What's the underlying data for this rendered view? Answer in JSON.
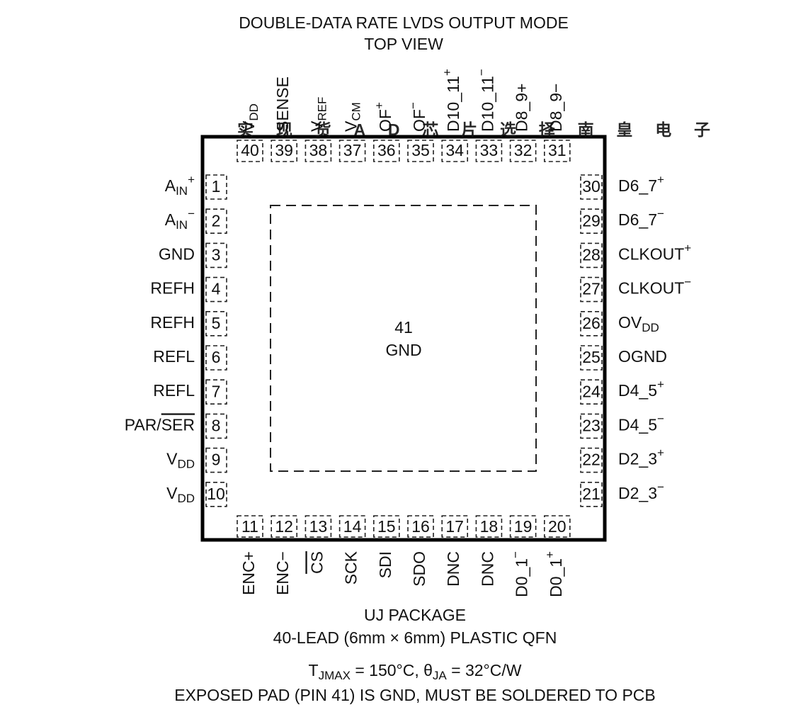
{
  "header": {
    "title": [
      "DOUBLE-DATA RATE LVDS OUTPUT MODE",
      "TOP VIEW"
    ]
  },
  "watermark": "实现货AD芯片选择南皇电子",
  "exposed_pad": {
    "number": "41",
    "label": "GND"
  },
  "pins": {
    "left": [
      {
        "number": "1",
        "label": [
          "A",
          {
            "sub": "IN"
          },
          {
            "sup": "+"
          }
        ]
      },
      {
        "number": "2",
        "label": [
          "A",
          {
            "sub": "IN"
          },
          {
            "sup": "−"
          }
        ]
      },
      {
        "number": "3",
        "label": [
          "GND"
        ]
      },
      {
        "number": "4",
        "label": [
          "REFH"
        ]
      },
      {
        "number": "5",
        "label": [
          "REFH"
        ]
      },
      {
        "number": "6",
        "label": [
          "REFL"
        ]
      },
      {
        "number": "7",
        "label": [
          "REFL"
        ]
      },
      {
        "number": "8",
        "label": [
          "PAR/",
          {
            "over": "SER"
          }
        ]
      },
      {
        "number": "9",
        "label": [
          "V",
          {
            "sub": "DD"
          }
        ]
      },
      {
        "number": "10",
        "label": [
          "V",
          {
            "sub": "DD"
          }
        ]
      }
    ],
    "right": [
      {
        "number": "30",
        "label": [
          "D6_7",
          {
            "sup": "+"
          }
        ]
      },
      {
        "number": "29",
        "label": [
          "D6_7",
          {
            "sup": "−"
          }
        ]
      },
      {
        "number": "28",
        "label": [
          "CLKOUT",
          {
            "sup": "+"
          }
        ]
      },
      {
        "number": "27",
        "label": [
          "CLKOUT",
          {
            "sup": "−"
          }
        ]
      },
      {
        "number": "26",
        "label": [
          "OV",
          {
            "sub": "DD"
          }
        ]
      },
      {
        "number": "25",
        "label": [
          "OGND"
        ]
      },
      {
        "number": "24",
        "label": [
          "D4_5",
          {
            "sup": "+"
          }
        ]
      },
      {
        "number": "23",
        "label": [
          "D4_5",
          {
            "sup": "−"
          }
        ]
      },
      {
        "number": "22",
        "label": [
          "D2_3",
          {
            "sup": "+"
          }
        ]
      },
      {
        "number": "21",
        "label": [
          "D2_3",
          {
            "sup": "−"
          }
        ]
      }
    ],
    "top": [
      {
        "number": "40",
        "label": [
          "V",
          {
            "sub": "DD"
          }
        ]
      },
      {
        "number": "39",
        "label": [
          "SENSE"
        ]
      },
      {
        "number": "38",
        "label": [
          "V",
          {
            "sub": "REF"
          }
        ]
      },
      {
        "number": "37",
        "label": [
          "V",
          {
            "sub": "CM"
          }
        ]
      },
      {
        "number": "36",
        "label": [
          "OF",
          {
            "sup": "+"
          }
        ]
      },
      {
        "number": "35",
        "label": [
          "OF",
          {
            "sup": "−"
          }
        ]
      },
      {
        "number": "34",
        "label": [
          "D10_11",
          {
            "sup": "+"
          }
        ]
      },
      {
        "number": "33",
        "label": [
          "D10_11",
          {
            "sup": "−"
          }
        ]
      },
      {
        "number": "32",
        "label": [
          "D8_9+"
        ]
      },
      {
        "number": "31",
        "label": [
          "D8_9−"
        ]
      }
    ],
    "bottom": [
      {
        "number": "11",
        "label": [
          "ENC+"
        ]
      },
      {
        "number": "12",
        "label": [
          "ENC−"
        ]
      },
      {
        "number": "13",
        "label": [
          {
            "over": "CS"
          }
        ]
      },
      {
        "number": "14",
        "label": [
          "SCK"
        ]
      },
      {
        "number": "15",
        "label": [
          "SDI"
        ]
      },
      {
        "number": "16",
        "label": [
          "SDO"
        ]
      },
      {
        "number": "17",
        "label": [
          "DNC"
        ]
      },
      {
        "number": "18",
        "label": [
          "DNC"
        ]
      },
      {
        "number": "19",
        "label": [
          "D0_1",
          {
            "sup": "−"
          }
        ]
      },
      {
        "number": "20",
        "label": [
          "D0_1",
          {
            "sup": "+"
          }
        ]
      }
    ]
  },
  "footer": {
    "lines": [
      [
        "UJ PACKAGE"
      ],
      [
        "40-LEAD (6mm × 6mm) PLASTIC QFN"
      ],
      [
        "T",
        {
          "sub": "JMAX"
        },
        " = 150°C, θ",
        {
          "sub": "JA"
        },
        " = 32°C/W"
      ],
      [
        "EXPOSED PAD (PIN 41) IS GND, MUST BE SOLDERED TO PCB"
      ]
    ]
  }
}
